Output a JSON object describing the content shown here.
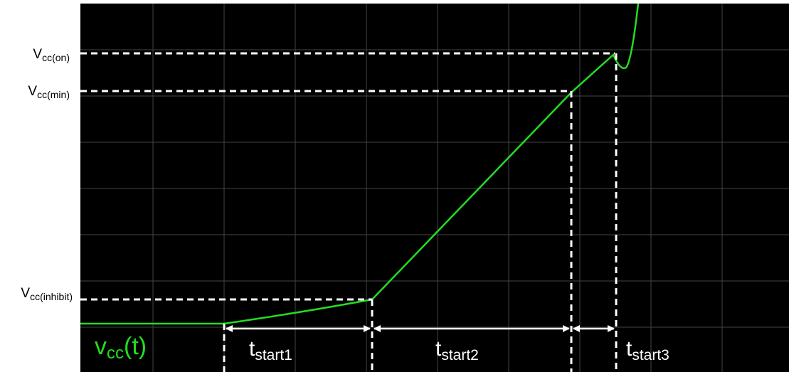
{
  "levels": [
    {
      "symbol": "V",
      "subscript": "cc(on)"
    },
    {
      "symbol": "V",
      "subscript": "cc(min)"
    },
    {
      "symbol": "V",
      "subscript": "cc(inhibit)"
    }
  ],
  "intervals": [
    {
      "symbol": "t",
      "subscript": "start1"
    },
    {
      "symbol": "t",
      "subscript": "start2"
    },
    {
      "symbol": "t",
      "subscript": "start3"
    }
  ],
  "signal": {
    "symbol": "v",
    "subscript": "cc",
    "suffix": "(t)"
  }
}
